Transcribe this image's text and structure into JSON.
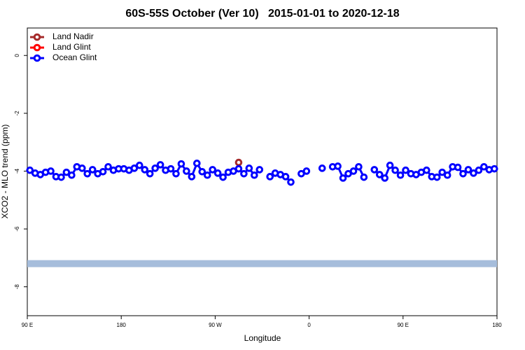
{
  "chart_data": {
    "type": "line",
    "title": "60S-55S October (Ver 10)   2015-01-01 to 2020-12-18",
    "xlabel": "Longitude",
    "ylabel": "XCO2 - MLO trend (ppm)",
    "xlim": [
      90,
      540
    ],
    "ylim": [
      -9,
      0.95
    ],
    "xticks": [
      {
        "value": 90,
        "label": "90 E"
      },
      {
        "value": 180,
        "label": "180"
      },
      {
        "value": 270,
        "label": "90 W"
      },
      {
        "value": 360,
        "label": "0"
      },
      {
        "value": 450,
        "label": "90 E"
      },
      {
        "value": 540,
        "label": "180"
      }
    ],
    "yticks": [
      0,
      -2,
      -4,
      -6,
      -8
    ],
    "legend": "top-left",
    "hline": {
      "value": -7.2,
      "color": "#a6bddb"
    },
    "series": [
      {
        "name": "Land Nadir",
        "color": "#a52a2a",
        "x": [
          292.5
        ],
        "values": [
          -3.7
        ]
      },
      {
        "name": "Land Glint",
        "color": "#ff0000",
        "x": [],
        "values": []
      },
      {
        "name": "Ocean Glint",
        "color": "#0000ff",
        "x": [
          92.5,
          97.5,
          102.5,
          107.5,
          112.5,
          117.5,
          122.5,
          127.5,
          132.5,
          137.5,
          142.5,
          147.5,
          152.5,
          157.5,
          162.5,
          167.5,
          172.5,
          177.5,
          182.5,
          187.5,
          192.5,
          197.5,
          202.5,
          207.5,
          212.5,
          217.5,
          222.5,
          227.5,
          232.5,
          237.5,
          242.5,
          247.5,
          252.5,
          257.5,
          262.5,
          267.5,
          272.5,
          277.5,
          282.5,
          287.5,
          292.5,
          297.5,
          302.5,
          307.5,
          312.5,
          317.5,
          322.5,
          327.5,
          332.5,
          337.5,
          342.5,
          347.5,
          352.5,
          357.5,
          362.5,
          367.5,
          372.5,
          377.5,
          382.5,
          387.5,
          392.5,
          397.5,
          402.5,
          407.5,
          412.5,
          417.5,
          422.5,
          427.5,
          432.5,
          437.5,
          442.5,
          447.5,
          452.5,
          457.5,
          462.5,
          467.5,
          472.5,
          477.5,
          482.5,
          487.5,
          492.5,
          497.5,
          502.5,
          507.5,
          512.5,
          517.5,
          522.5,
          527.5,
          532.5,
          537.5
        ],
        "values": [
          -3.97,
          -4.07,
          -4.12,
          -4.04,
          -4.0,
          -4.19,
          -4.21,
          -4.04,
          -4.14,
          -3.85,
          -3.9,
          -4.09,
          -3.95,
          -4.09,
          -4.02,
          -3.85,
          -3.97,
          -3.92,
          -3.92,
          -3.97,
          -3.9,
          -3.8,
          -3.95,
          -4.09,
          -3.9,
          -3.78,
          -3.97,
          -3.92,
          -4.09,
          -3.75,
          -4.0,
          -4.19,
          -3.73,
          -4.02,
          -4.14,
          -3.95,
          -4.07,
          -4.21,
          -4.04,
          -4.0,
          -3.92,
          -4.09,
          -3.9,
          -4.14,
          -3.95,
          null,
          -4.19,
          -4.07,
          -4.12,
          -4.19,
          -4.38,
          null,
          -4.09,
          -4.0,
          null,
          null,
          -3.9,
          null,
          -3.85,
          -3.83,
          -4.24,
          -4.09,
          -4.0,
          -3.85,
          -4.21,
          null,
          -3.95,
          -4.12,
          -4.24,
          -3.8,
          -3.97,
          -4.14,
          -3.97,
          -4.09,
          -4.12,
          -4.04,
          -3.97,
          -4.19,
          -4.21,
          -4.04,
          -4.14,
          -3.85,
          -3.87,
          -4.09,
          -3.95,
          -4.07,
          -3.97,
          -3.85,
          -3.95,
          -3.92
        ]
      }
    ]
  }
}
